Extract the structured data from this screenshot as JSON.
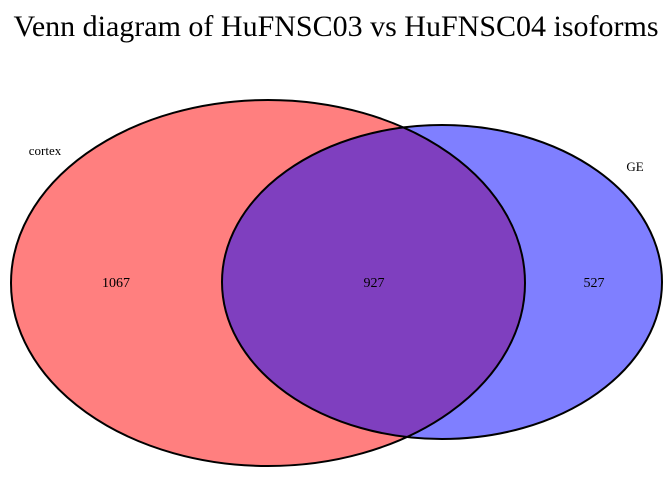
{
  "title": "Venn diagram of HuFNSC03 vs HuFNSC04 isoforms",
  "sets": [
    {
      "label": "cortex",
      "color": "#FF0000",
      "fill_opacity": 0.5
    },
    {
      "label": "GE",
      "color": "#0000FF",
      "fill_opacity": 0.5
    }
  ],
  "regions": {
    "cortex_only": "1067",
    "intersection": "927",
    "ge_only": "527"
  },
  "stroke_color": "#000000"
}
